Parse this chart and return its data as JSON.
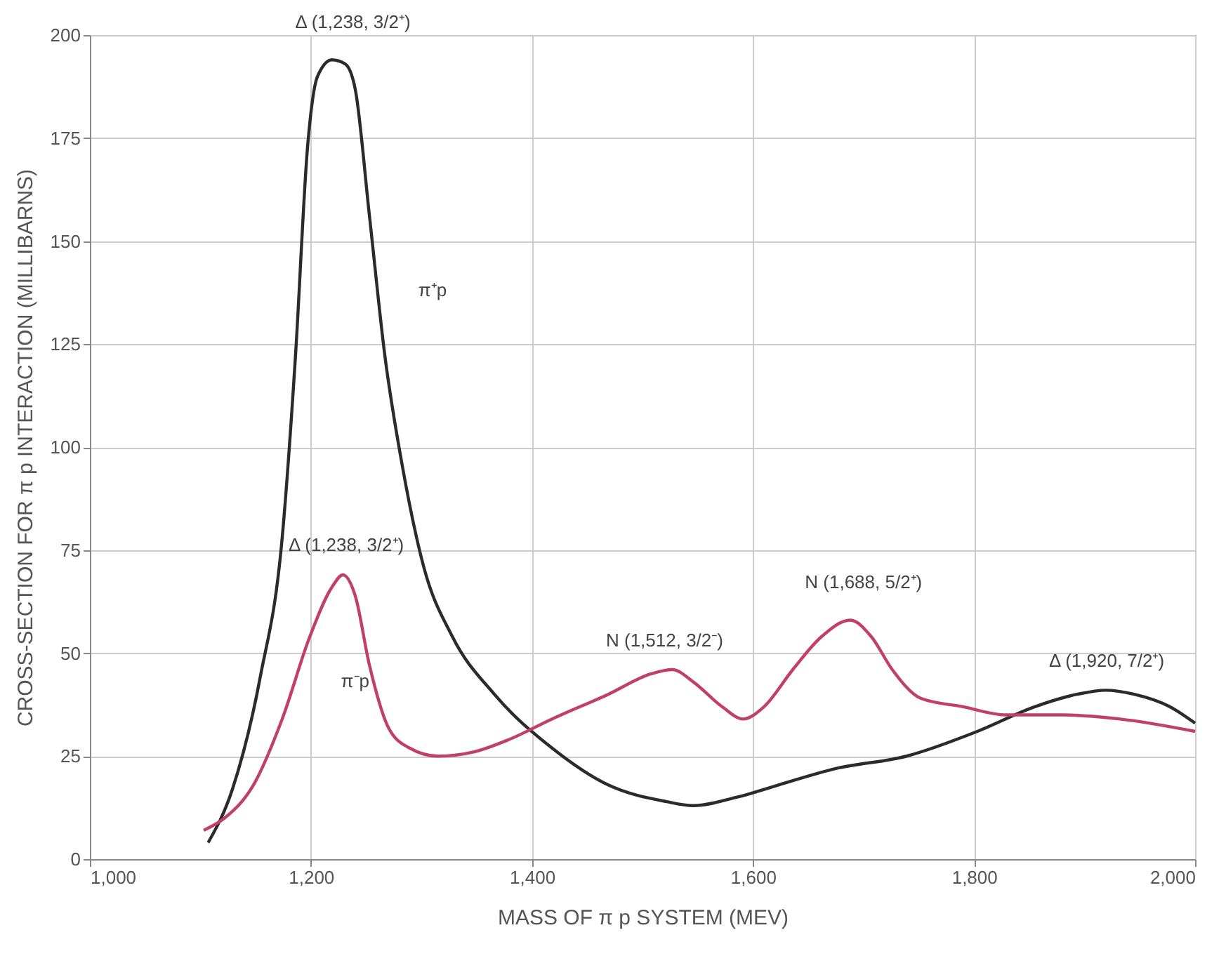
{
  "chart_data": {
    "type": "line",
    "xlabel": "MASS OF π p SYSTEM (MEV)",
    "ylabel": "CROSS-SECTION FOR π p INTERACTION (MILLIBARNS)",
    "xlim": [
      1000,
      2000
    ],
    "xticks": [
      {
        "value": 1000,
        "label": "1,000"
      },
      {
        "value": 1200,
        "label": "1,200"
      },
      {
        "value": 1400,
        "label": "1,400"
      },
      {
        "value": 1600,
        "label": "1,600"
      },
      {
        "value": 1800,
        "label": "1,800"
      },
      {
        "value": 2000,
        "label": "2,000"
      }
    ],
    "ylim": [
      0,
      200
    ],
    "yticks": [
      0,
      25,
      50,
      75,
      100,
      125,
      150,
      175,
      200
    ],
    "grid": true,
    "legend": false,
    "marker": "none",
    "line_style": "solid",
    "series": [
      {
        "color": "#2b2b2b",
        "x": [
          1107,
          1129,
          1154,
          1174,
          1186,
          1197,
          1206,
          1219,
          1231,
          1240,
          1253,
          1267,
          1283,
          1302,
          1328,
          1366,
          1418,
          1469,
          1521,
          1546,
          1585,
          1623,
          1675,
          1739,
          1803,
          1855,
          1893,
          1919,
          1945,
          1977,
          2000
        ],
        "values": [
          4,
          17,
          44,
          78,
          122,
          173,
          190,
          194,
          193,
          187,
          156,
          122,
          95,
          71,
          54,
          40,
          27,
          18,
          14,
          13,
          15,
          18,
          22,
          25,
          31,
          37,
          40,
          41,
          40,
          37,
          33
        ]
      },
      {
        "color": "#c0406a",
        "x": [
          1103,
          1122,
          1148,
          1174,
          1199,
          1219,
          1229,
          1240,
          1253,
          1270,
          1289,
          1315,
          1347,
          1379,
          1418,
          1469,
          1508,
          1527,
          1546,
          1572,
          1591,
          1610,
          1636,
          1662,
          1688,
          1707,
          1726,
          1752,
          1790,
          1829,
          1880,
          1932,
          2000
        ],
        "values": [
          7,
          10,
          18,
          34,
          54,
          66,
          69,
          64,
          47,
          32,
          27,
          25,
          26,
          29,
          34,
          40,
          45,
          46,
          43,
          37,
          34,
          37,
          46,
          54,
          58,
          54,
          46,
          39,
          37,
          35,
          35,
          34,
          31
        ]
      }
    ],
    "annotations": [
      "Δ (1,238, 3/2⁺)",
      "π⁺p",
      "Δ (1,238, 3/2⁺)",
      "π⁻p",
      "N (1,512, 3/2⁻)",
      "N (1,688, 5/2⁺)",
      "Δ (1,920, 7/2⁺)"
    ]
  }
}
